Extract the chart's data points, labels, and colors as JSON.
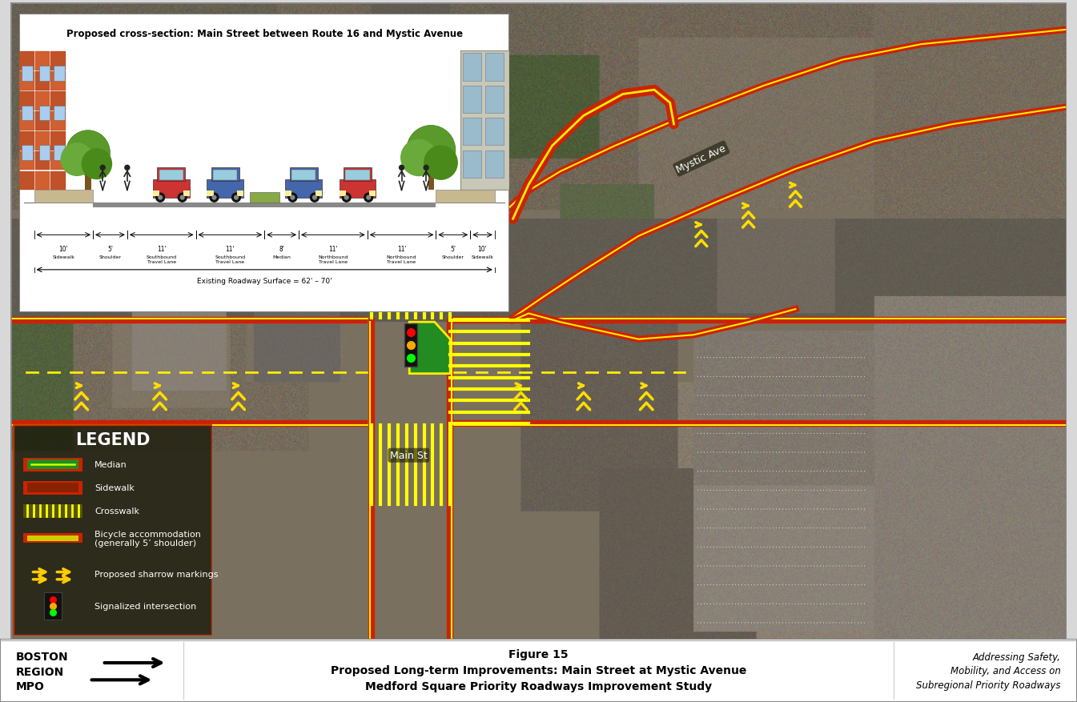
{
  "title_footer_fig": "Figure 15",
  "title_footer_main": "Proposed Long-term Improvements: Main Street at Mystic Avenue",
  "title_footer_sub": "Medford Square Priority Roadways Improvement Study",
  "title_footer_left1": "BOSTON",
  "title_footer_left2": "REGION",
  "title_footer_left3": "MPO",
  "title_footer_right1": "Addressing Safety,",
  "title_footer_right2": "Mobility, and Access on",
  "title_footer_right3": "Subregional Priority Roadways",
  "cross_section_title": "Proposed cross-section: Main Street between Route 16 and Mystic Avenue",
  "legend_title": "LEGEND",
  "border_color": "#999999",
  "footer_bg": "#ffffff",
  "outer_border": "#aaaaaa"
}
